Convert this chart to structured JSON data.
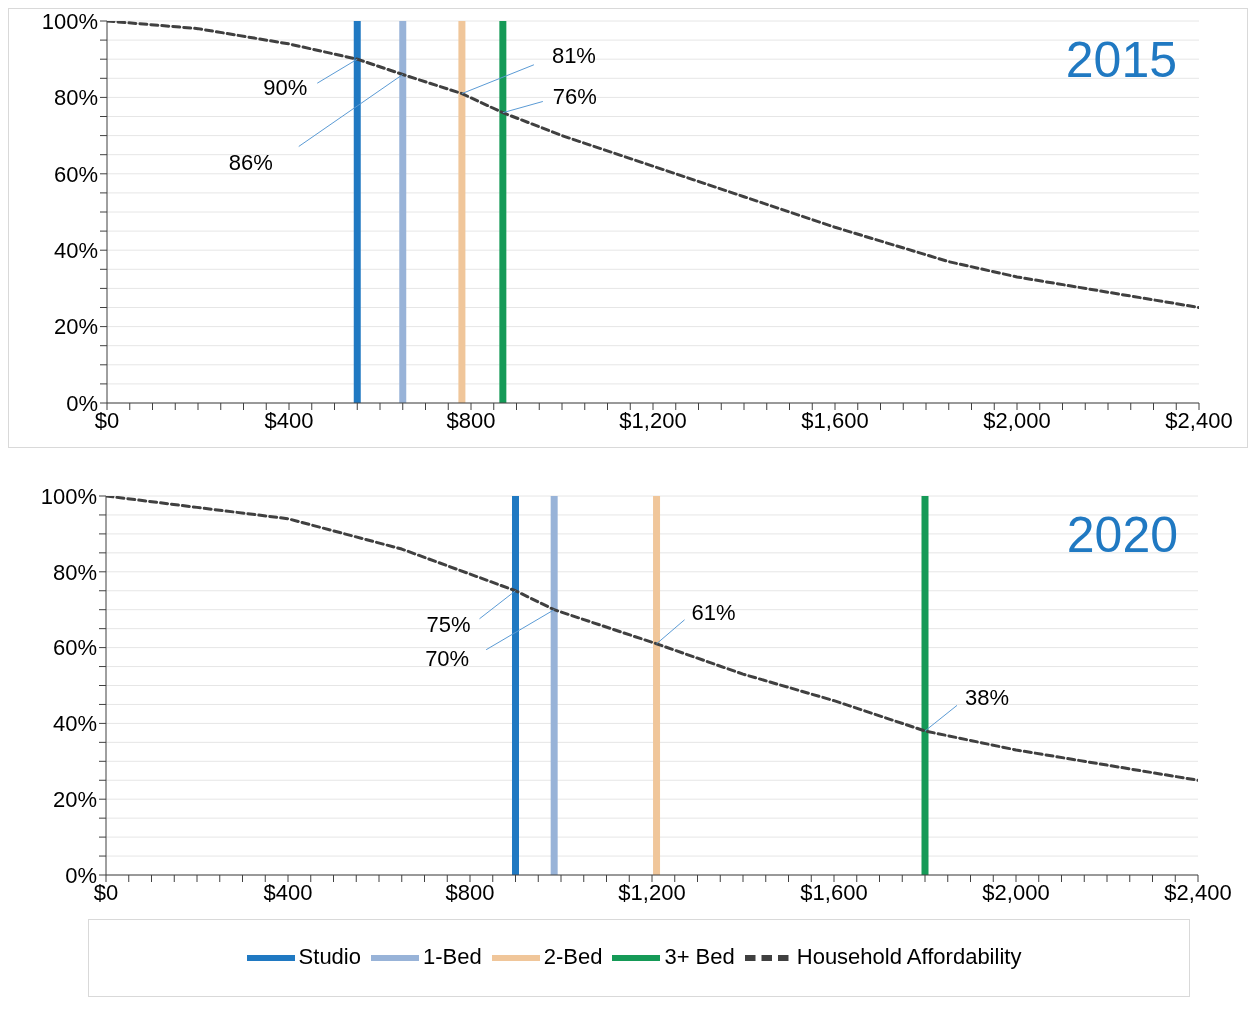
{
  "chart_data": [
    {
      "type": "line",
      "title": "2015",
      "x": [
        0,
        200,
        400,
        550,
        650,
        780,
        870,
        1000,
        1200,
        1400,
        1600,
        1850,
        2000,
        2200,
        2400
      ],
      "series": [
        {
          "x": [
            550,
            550
          ],
          "values": [
            0,
            100
          ],
          "color": "#2079c2"
        },
        {
          "x": [
            650,
            650
          ],
          "values": [
            0,
            100
          ],
          "color": "#98b3d8"
        },
        {
          "x": [
            780,
            780
          ],
          "values": [
            0,
            100
          ],
          "color": "#f0c69a"
        },
        {
          "x": [
            870,
            870
          ],
          "values": [
            0,
            100
          ],
          "color": "#159a57"
        },
        {
          "values": [
            100,
            98,
            94,
            90,
            86,
            81,
            76,
            70,
            62,
            54,
            46,
            37,
            33,
            29,
            25
          ],
          "color": "#404040",
          "line_style": "dashed"
        }
      ],
      "annotations": [
        {
          "text": "90%",
          "x": 550,
          "y": 90
        },
        {
          "text": "86%",
          "x": 650,
          "y": 86
        },
        {
          "text": "81%",
          "x": 780,
          "y": 81
        },
        {
          "text": "76%",
          "x": 870,
          "y": 76
        }
      ],
      "xlim": [
        0,
        2400
      ],
      "xticks": [
        {
          "value": 0,
          "label": "$0"
        },
        {
          "value": 50,
          "label": null
        },
        {
          "value": 100,
          "label": null
        },
        {
          "value": 150,
          "label": null
        },
        {
          "value": 200,
          "label": null
        },
        {
          "value": 250,
          "label": null
        },
        {
          "value": 300,
          "label": null
        },
        {
          "value": 350,
          "label": null
        },
        {
          "value": 400,
          "label": "$400"
        },
        {
          "value": 450,
          "label": null
        },
        {
          "value": 500,
          "label": null
        },
        {
          "value": 550,
          "label": null
        },
        {
          "value": 600,
          "label": null
        },
        {
          "value": 650,
          "label": null
        },
        {
          "value": 700,
          "label": null
        },
        {
          "value": 750,
          "label": null
        },
        {
          "value": 800,
          "label": "$800"
        },
        {
          "value": 850,
          "label": null
        },
        {
          "value": 900,
          "label": null
        },
        {
          "value": 950,
          "label": null
        },
        {
          "value": 1000,
          "label": null
        },
        {
          "value": 1050,
          "label": null
        },
        {
          "value": 1100,
          "label": null
        },
        {
          "value": 1150,
          "label": null
        },
        {
          "value": 1200,
          "label": "$1,200"
        },
        {
          "value": 1250,
          "label": null
        },
        {
          "value": 1300,
          "label": null
        },
        {
          "value": 1350,
          "label": null
        },
        {
          "value": 1400,
          "label": null
        },
        {
          "value": 1450,
          "label": null
        },
        {
          "value": 1500,
          "label": null
        },
        {
          "value": 1550,
          "label": null
        },
        {
          "value": 1600,
          "label": "$1,600"
        },
        {
          "value": 1650,
          "label": null
        },
        {
          "value": 1700,
          "label": null
        },
        {
          "value": 1750,
          "label": null
        },
        {
          "value": 1800,
          "label": null
        },
        {
          "value": 1850,
          "label": null
        },
        {
          "value": 1900,
          "label": null
        },
        {
          "value": 1950,
          "label": null
        },
        {
          "value": 2000,
          "label": "$2,000"
        },
        {
          "value": 2050,
          "label": null
        },
        {
          "value": 2100,
          "label": null
        },
        {
          "value": 2150,
          "label": null
        },
        {
          "value": 2200,
          "label": null
        },
        {
          "value": 2250,
          "label": null
        },
        {
          "value": 2300,
          "label": null
        },
        {
          "value": 2350,
          "label": null
        },
        {
          "value": 2400,
          "label": "$2,400"
        }
      ],
      "ylim": [
        0,
        100
      ],
      "yticks": [
        {
          "value": 0,
          "label": "0%"
        },
        {
          "value": 5,
          "label": null
        },
        {
          "value": 10,
          "label": null
        },
        {
          "value": 15,
          "label": null
        },
        {
          "value": 20,
          "label": "20%"
        },
        {
          "value": 25,
          "label": null
        },
        {
          "value": 30,
          "label": null
        },
        {
          "value": 35,
          "label": null
        },
        {
          "value": 40,
          "label": "40%"
        },
        {
          "value": 45,
          "label": null
        },
        {
          "value": 50,
          "label": null
        },
        {
          "value": 55,
          "label": null
        },
        {
          "value": 60,
          "label": "60%"
        },
        {
          "value": 65,
          "label": null
        },
        {
          "value": 70,
          "label": null
        },
        {
          "value": 75,
          "label": null
        },
        {
          "value": 80,
          "label": "80%"
        },
        {
          "value": 85,
          "label": null
        },
        {
          "value": 90,
          "label": null
        },
        {
          "value": 95,
          "label": null
        },
        {
          "value": 100,
          "label": "100%"
        }
      ],
      "grid": "y",
      "marker": "none"
    },
    {
      "type": "line",
      "title": "2020",
      "x": [
        0,
        200,
        400,
        650,
        900,
        985,
        1210,
        1400,
        1600,
        1800,
        2000,
        2200,
        2400
      ],
      "series": [
        {
          "name": "Studio",
          "x": [
            900,
            900
          ],
          "values": [
            0,
            100
          ],
          "color": "#2079c2"
        },
        {
          "name": "1-Bed",
          "x": [
            985,
            985
          ],
          "values": [
            0,
            100
          ],
          "color": "#98b3d8"
        },
        {
          "name": "2-Bed",
          "x": [
            1210,
            1210
          ],
          "values": [
            0,
            100
          ],
          "color": "#f0c69a"
        },
        {
          "name": "3+ Bed",
          "x": [
            1800,
            1800
          ],
          "values": [
            0,
            100
          ],
          "color": "#159a57"
        },
        {
          "name": "Household Affordability",
          "values": [
            100,
            97,
            94,
            86,
            75,
            70,
            61,
            53,
            46,
            38,
            33,
            29,
            25
          ],
          "color": "#404040",
          "line_style": "dashed"
        }
      ],
      "annotations": [
        {
          "text": "75%",
          "x": 900,
          "y": 75
        },
        {
          "text": "70%",
          "x": 985,
          "y": 70
        },
        {
          "text": "61%",
          "x": 1210,
          "y": 61
        },
        {
          "text": "38%",
          "x": 1800,
          "y": 38
        }
      ],
      "xlim": [
        0,
        2400
      ],
      "xticks": [
        {
          "value": 0,
          "label": "$0"
        },
        {
          "value": 50,
          "label": null
        },
        {
          "value": 100,
          "label": null
        },
        {
          "value": 150,
          "label": null
        },
        {
          "value": 200,
          "label": null
        },
        {
          "value": 250,
          "label": null
        },
        {
          "value": 300,
          "label": null
        },
        {
          "value": 350,
          "label": null
        },
        {
          "value": 400,
          "label": "$400"
        },
        {
          "value": 450,
          "label": null
        },
        {
          "value": 500,
          "label": null
        },
        {
          "value": 550,
          "label": null
        },
        {
          "value": 600,
          "label": null
        },
        {
          "value": 650,
          "label": null
        },
        {
          "value": 700,
          "label": null
        },
        {
          "value": 750,
          "label": null
        },
        {
          "value": 800,
          "label": "$800"
        },
        {
          "value": 850,
          "label": null
        },
        {
          "value": 900,
          "label": null
        },
        {
          "value": 950,
          "label": null
        },
        {
          "value": 1000,
          "label": null
        },
        {
          "value": 1050,
          "label": null
        },
        {
          "value": 1100,
          "label": null
        },
        {
          "value": 1150,
          "label": null
        },
        {
          "value": 1200,
          "label": "$1,200"
        },
        {
          "value": 1250,
          "label": null
        },
        {
          "value": 1300,
          "label": null
        },
        {
          "value": 1350,
          "label": null
        },
        {
          "value": 1400,
          "label": null
        },
        {
          "value": 1450,
          "label": null
        },
        {
          "value": 1500,
          "label": null
        },
        {
          "value": 1550,
          "label": null
        },
        {
          "value": 1600,
          "label": "$1,600"
        },
        {
          "value": 1650,
          "label": null
        },
        {
          "value": 1700,
          "label": null
        },
        {
          "value": 1750,
          "label": null
        },
        {
          "value": 1800,
          "label": null
        },
        {
          "value": 1850,
          "label": null
        },
        {
          "value": 1900,
          "label": null
        },
        {
          "value": 1950,
          "label": null
        },
        {
          "value": 2000,
          "label": "$2,000"
        },
        {
          "value": 2050,
          "label": null
        },
        {
          "value": 2100,
          "label": null
        },
        {
          "value": 2150,
          "label": null
        },
        {
          "value": 2200,
          "label": null
        },
        {
          "value": 2250,
          "label": null
        },
        {
          "value": 2300,
          "label": null
        },
        {
          "value": 2350,
          "label": null
        },
        {
          "value": 2400,
          "label": "$2,400"
        }
      ],
      "ylim": [
        0,
        100
      ],
      "yticks": [
        {
          "value": 0,
          "label": "0%"
        },
        {
          "value": 5,
          "label": null
        },
        {
          "value": 10,
          "label": null
        },
        {
          "value": 15,
          "label": null
        },
        {
          "value": 20,
          "label": "20%"
        },
        {
          "value": 25,
          "label": null
        },
        {
          "value": 30,
          "label": null
        },
        {
          "value": 35,
          "label": null
        },
        {
          "value": 40,
          "label": "40%"
        },
        {
          "value": 45,
          "label": null
        },
        {
          "value": 50,
          "label": null
        },
        {
          "value": 55,
          "label": null
        },
        {
          "value": 60,
          "label": "60%"
        },
        {
          "value": 65,
          "label": null
        },
        {
          "value": 70,
          "label": null
        },
        {
          "value": 75,
          "label": null
        },
        {
          "value": 80,
          "label": "80%"
        },
        {
          "value": 85,
          "label": null
        },
        {
          "value": 90,
          "label": null
        },
        {
          "value": 95,
          "label": null
        },
        {
          "value": 100,
          "label": "100%"
        }
      ],
      "grid": "y",
      "marker": "none",
      "legend": "bottom"
    }
  ]
}
